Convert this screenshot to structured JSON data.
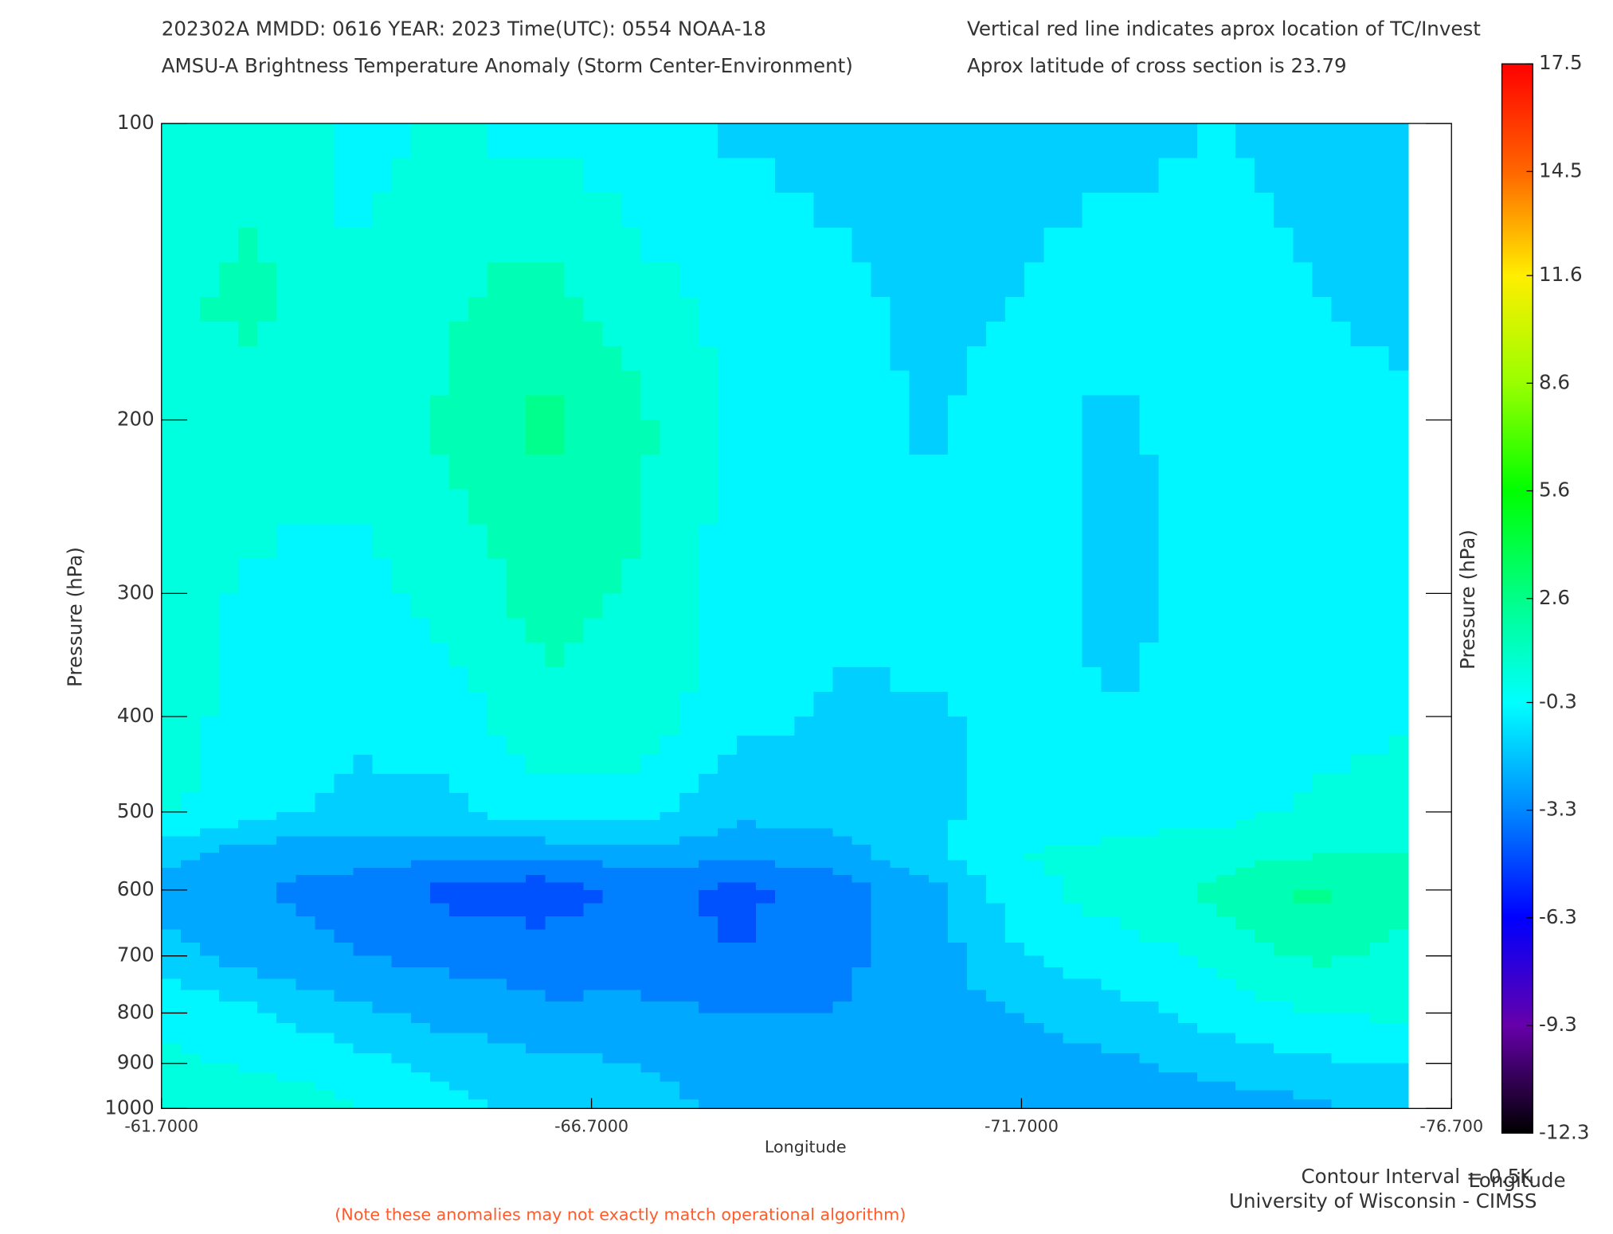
{
  "chart_data": {
    "type": "contour",
    "title_lines": [
      "202302A  MMDD: 0616 YEAR: 2023 Time(UTC): 0554 NOAA-18",
      "AMSU-A Brightness Temperature Anomaly (Storm Center-Environment)"
    ],
    "note_lines": [
      "Vertical red line indicates aprox location of TC/Invest",
      "Aprox latitude of cross section is 23.79"
    ],
    "x_label": "Longitude",
    "y_label": "Pressure (hPa)",
    "y2_label": "Pressure (hPa)",
    "x_label_right": "Longitude",
    "footer_lines": [
      "Contour Interval = 0.5K",
      "University of Wisconsin - CIMSS"
    ],
    "disclaimer": "(Note these anomalies may not exactly match operational algorithm)",
    "x": [
      -61.7,
      -62.815,
      -63.93,
      -65.045,
      -66.16,
      -67.275,
      -68.39,
      -69.505,
      -70.62,
      -71.735,
      -72.85,
      -73.965,
      -75.08,
      -76.195
    ],
    "y": [
      100,
      150,
      200,
      300,
      400,
      500,
      550,
      600,
      700,
      800,
      900,
      1000
    ],
    "z": [
      [
        0.5,
        0.5,
        -0.2,
        0,
        -0.3,
        -0.5,
        -1.2,
        -1.3,
        -1.3,
        -1.3,
        -1.3,
        -1.0,
        -1.2,
        -1.3
      ],
      [
        0.8,
        1.3,
        0.0,
        0.8,
        1.5,
        0.3,
        -0.3,
        -0.8,
        -1.2,
        -1.0,
        -0.5,
        -0.6,
        -1.0,
        -1.3
      ],
      [
        0.5,
        0.6,
        0.3,
        1.2,
        2.3,
        1.2,
        -0.2,
        -0.6,
        -1.1,
        -0.7,
        -1.2,
        -0.5,
        -0.6,
        -0.8
      ],
      [
        0.3,
        -0.2,
        -0.3,
        0.3,
        1.5,
        0.8,
        -0.5,
        -0.9,
        -0.7,
        -0.8,
        -1.2,
        -0.7,
        -0.6,
        -0.7
      ],
      [
        0.3,
        -0.3,
        -0.7,
        -0.4,
        0.6,
        0.6,
        -0.7,
        -1.1,
        -1.1,
        -0.8,
        -1.0,
        -0.7,
        -0.6,
        -0.2
      ],
      [
        0.2,
        -0.6,
        -1.4,
        -1.3,
        -0.3,
        -0.5,
        -1.8,
        -1.6,
        -1.2,
        -0.6,
        -0.5,
        -0.3,
        0.2,
        0.7
      ],
      [
        -1.5,
        -2.5,
        -2.5,
        -2.6,
        -2.7,
        -2.4,
        -2.6,
        -2.5,
        -1.3,
        0.0,
        0.3,
        0.5,
        0.9,
        1.0
      ],
      [
        -2.5,
        -3.0,
        -3.5,
        -4.3,
        -4.6,
        -3.7,
        -4.3,
        -3.5,
        -2.3,
        -0.3,
        0.5,
        1.2,
        2.2,
        1.2
      ],
      [
        -1.5,
        -2.5,
        -3.0,
        -3.3,
        -3.5,
        -3.4,
        -4.0,
        -3.3,
        -2.5,
        -1.0,
        -0.4,
        0.2,
        1.2,
        0.8
      ],
      [
        -0.3,
        -0.8,
        -1.8,
        -2.4,
        -2.8,
        -2.8,
        -3.0,
        -3.0,
        -2.4,
        -2.0,
        -1.3,
        -0.6,
        0.0,
        0.2
      ],
      [
        0.3,
        -0.2,
        -0.6,
        -1.3,
        -1.8,
        -2.0,
        -2.6,
        -3.0,
        -2.6,
        -2.5,
        -2.2,
        -1.6,
        -1.2,
        -0.9
      ],
      [
        1.0,
        0.8,
        0.0,
        -0.8,
        -1.3,
        -1.6,
        -2.2,
        -2.8,
        -2.4,
        -3.0,
        -2.8,
        -2.6,
        -2.2,
        -1.6
      ]
    ],
    "xlim": [
      -61.7,
      -76.7
    ],
    "xticks": [
      {
        "value": -61.7,
        "label": "-61.7000"
      },
      {
        "value": -66.7,
        "label": "-66.7000"
      },
      {
        "value": -71.7,
        "label": "-71.7000"
      },
      {
        "value": -76.7,
        "label": "-76.700"
      }
    ],
    "ylim": [
      100,
      1000
    ],
    "ylog": true,
    "yticks": [
      100,
      200,
      300,
      400,
      500,
      600,
      700,
      800,
      900,
      1000
    ],
    "colorbar": {
      "lim": [
        -12.3,
        17.5
      ],
      "ticks": [
        17.5,
        14.5,
        11.6,
        8.6,
        5.6,
        2.6,
        -0.3,
        -3.3,
        -6.3,
        -9.3,
        -12.3
      ],
      "colors": [
        "#ff0000",
        "#ff6600",
        "#ffee00",
        "#99ff00",
        "#00ff00",
        "#00ff88",
        "#00ffff",
        "#0088ff",
        "#0000ff",
        "#6600aa",
        "#000000"
      ]
    }
  }
}
